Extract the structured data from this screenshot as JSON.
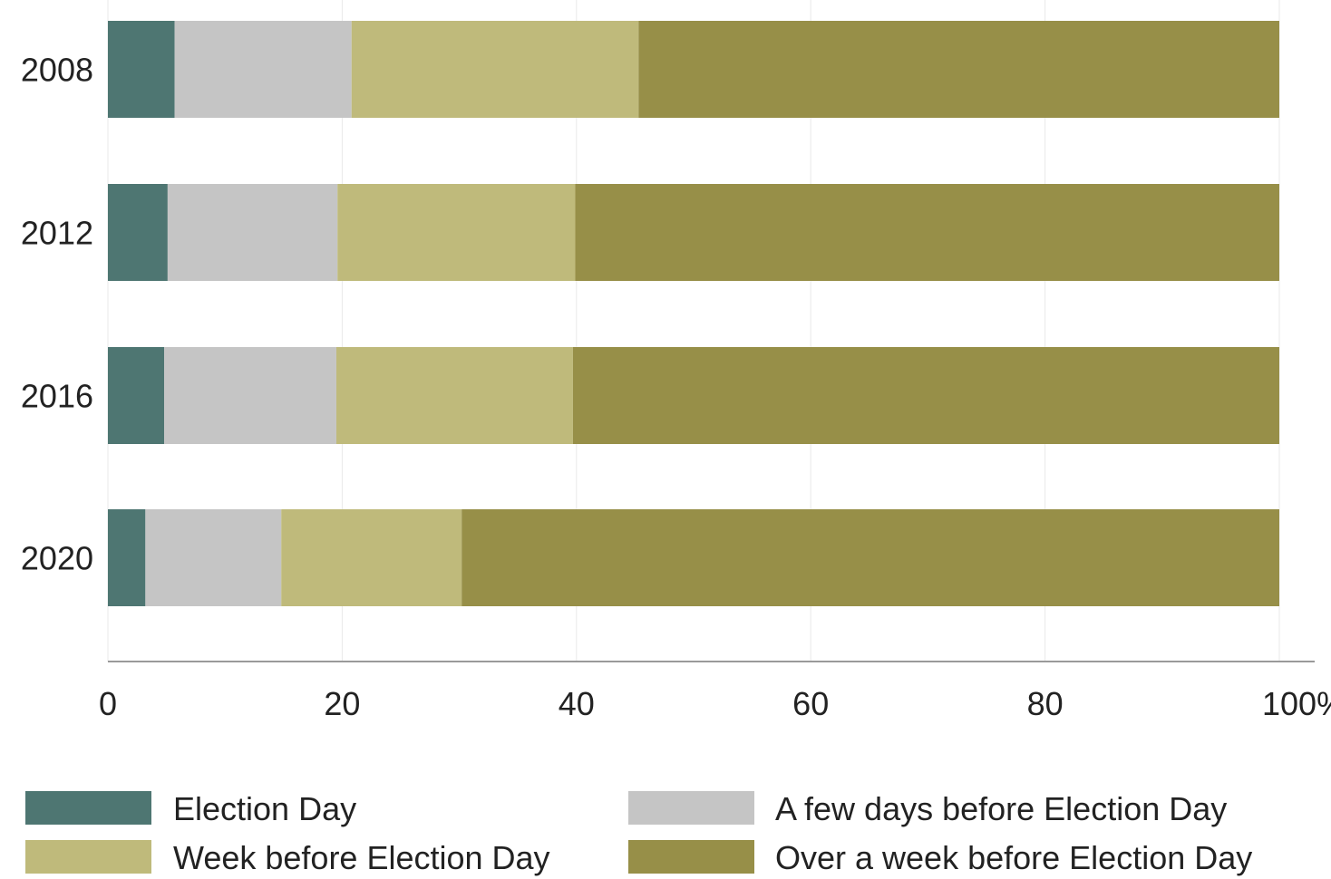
{
  "chart_data": {
    "type": "bar",
    "orientation": "horizontal",
    "stacked": true,
    "title": "",
    "xlabel": "",
    "ylabel": "",
    "categories": [
      "2008",
      "2012",
      "2016",
      "2020"
    ],
    "series": [
      {
        "name": "Election Day",
        "color": "#4e7672",
        "values": [
          5.7,
          5.1,
          4.8,
          3.2
        ]
      },
      {
        "name": "A few days before Election Day",
        "color": "#c5c5c5",
        "values": [
          15.1,
          14.5,
          14.7,
          11.6
        ]
      },
      {
        "name": "Week before Election Day",
        "color": "#bfba7b",
        "values": [
          24.5,
          20.3,
          20.2,
          15.4
        ]
      },
      {
        "name": "Over a week before Election Day",
        "color": "#978f48",
        "values": [
          54.7,
          60.1,
          60.3,
          69.8
        ]
      }
    ],
    "xlim": [
      0,
      100
    ],
    "xticks": [
      {
        "value": 0,
        "label": "0"
      },
      {
        "value": 20,
        "label": "20"
      },
      {
        "value": 40,
        "label": "40"
      },
      {
        "value": 60,
        "label": "60"
      },
      {
        "value": 80,
        "label": "80"
      },
      {
        "value": 100,
        "label": "100%"
      }
    ],
    "grid": "vertical",
    "legend_position": "bottom"
  }
}
